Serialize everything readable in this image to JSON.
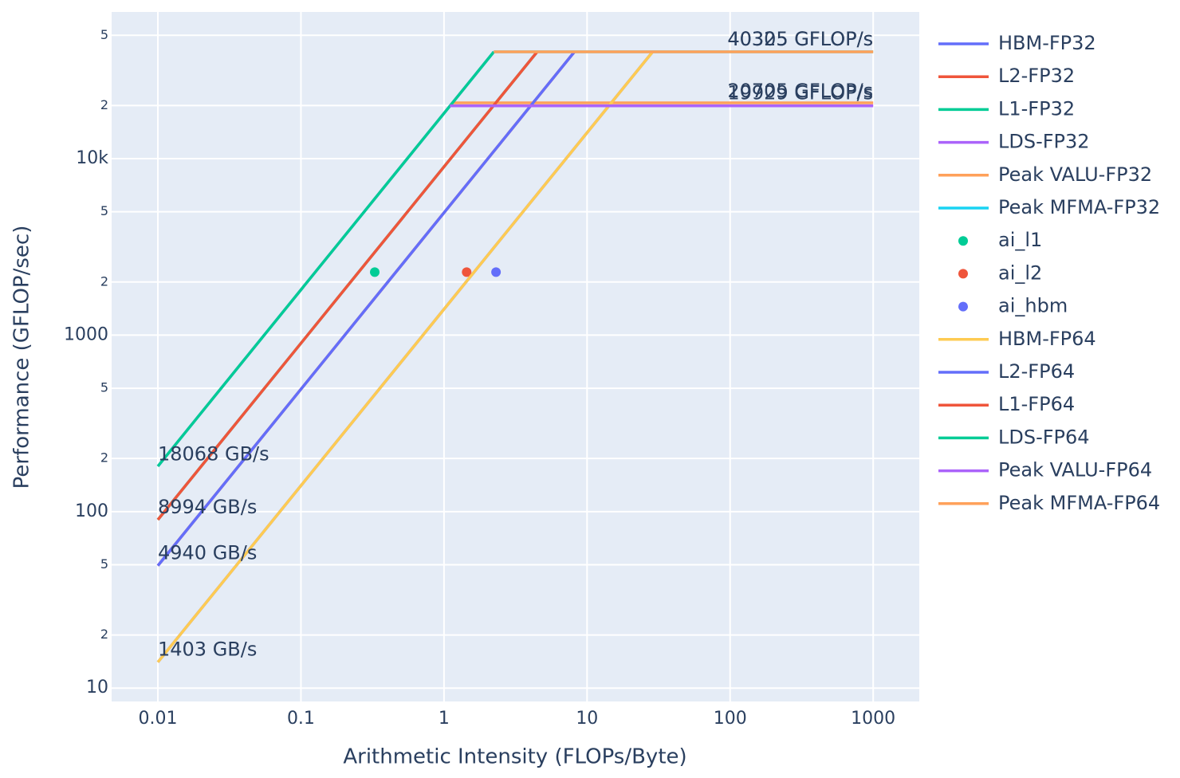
{
  "chart_data": {
    "type": "line",
    "x_label": "Arithmetic Intensity (FLOPs/Byte)",
    "y_label": "Performance (GFLOP/sec)",
    "x_log": true,
    "y_log": true,
    "grid": true,
    "legend": "right",
    "xlim": [
      0.00475,
      2100
    ],
    "ylim": [
      8.4,
      67800
    ],
    "xticks": [
      0.01,
      0.1,
      1,
      10,
      100,
      1000
    ],
    "yticks": [
      10,
      {
        "value": 20,
        "label": "2"
      },
      {
        "value": 50,
        "label": "5"
      },
      100,
      {
        "value": 200,
        "label": "2"
      },
      {
        "value": 500,
        "label": "5"
      },
      1000,
      {
        "value": 2000,
        "label": "2"
      },
      {
        "value": 5000,
        "label": "5"
      },
      {
        "value": 10000,
        "label": "10k"
      },
      {
        "value": 20000,
        "label": "2"
      },
      {
        "value": 50000,
        "label": "5"
      }
    ],
    "series": [
      {
        "name": "HBM-FP32",
        "color": "#636efa",
        "mode": "lines",
        "x": [
          0.01,
          28.73
        ],
        "values": [
          14.03,
          40305
        ]
      },
      {
        "name": "L2-FP32",
        "color": "#EF553B",
        "mode": "lines",
        "x": [
          0.01,
          8.16
        ],
        "values": [
          49.4,
          40305
        ]
      },
      {
        "name": "L1-FP32",
        "color": "#00cc96",
        "mode": "lines",
        "x": [
          0.01,
          4.48
        ],
        "values": [
          89.94,
          40305
        ]
      },
      {
        "name": "LDS-FP32",
        "color": "#ab63fa",
        "mode": "lines",
        "x": [
          0.01,
          2.23
        ],
        "values": [
          180.68,
          40305
        ]
      },
      {
        "name": "Peak VALU-FP32",
        "color": "#FFA15A",
        "mode": "lines",
        "x": [
          1.15,
          1000
        ],
        "values": [
          20705,
          20705
        ]
      },
      {
        "name": "Peak MFMA-FP32",
        "color": "#19d3f3",
        "mode": "lines",
        "x": [
          2.23,
          1000
        ],
        "values": [
          40305,
          40305
        ]
      },
      {
        "name": "ai_l1",
        "color": "#00cc96",
        "mode": "markers",
        "x": [
          0.328
        ],
        "values": [
          2275
        ]
      },
      {
        "name": "ai_l2",
        "color": "#EF553B",
        "mode": "markers",
        "x": [
          1.44
        ],
        "values": [
          2275
        ]
      },
      {
        "name": "ai_hbm",
        "color": "#636efa",
        "mode": "markers",
        "x": [
          2.31
        ],
        "values": [
          2275
        ]
      },
      {
        "name": "HBM-FP64",
        "color": "#FECB52",
        "mode": "lines",
        "x": [
          0.01,
          28.73
        ],
        "values": [
          14.03,
          40305
        ]
      },
      {
        "name": "L2-FP64",
        "color": "#636efa",
        "mode": "lines",
        "x": [
          0.01,
          8.16
        ],
        "values": [
          49.4,
          40305
        ]
      },
      {
        "name": "L1-FP64",
        "color": "#EF553B",
        "mode": "lines",
        "x": [
          0.01,
          4.48
        ],
        "values": [
          89.94,
          40305
        ]
      },
      {
        "name": "LDS-FP64",
        "color": "#00cc96",
        "mode": "lines",
        "x": [
          0.01,
          2.23
        ],
        "values": [
          180.68,
          40305
        ]
      },
      {
        "name": "Peak VALU-FP64",
        "color": "#ab63fa",
        "mode": "lines",
        "x": [
          1.1,
          1000
        ],
        "values": [
          19929,
          19929
        ]
      },
      {
        "name": "Peak MFMA-FP64",
        "color": "#FFA15A",
        "mode": "lines",
        "x": [
          2.23,
          1000
        ],
        "values": [
          40325,
          40325
        ]
      }
    ],
    "annotations": [
      {
        "text": "18068 GB/s",
        "x": 0.01,
        "y": 210,
        "xanchor": "left"
      },
      {
        "text": "8994 GB/s",
        "x": 0.01,
        "y": 105,
        "xanchor": "left"
      },
      {
        "text": "4940 GB/s",
        "x": 0.01,
        "y": 57.8,
        "xanchor": "left"
      },
      {
        "text": "1403 GB/s",
        "x": 0.01,
        "y": 16.4,
        "xanchor": "left"
      },
      {
        "text": "40305 GFLOP/s",
        "x": 1000,
        "y": 47100,
        "xanchor": "right"
      },
      {
        "text": "40325 GFLOP/s",
        "x": 1000,
        "y": 47100,
        "xanchor": "right"
      },
      {
        "text": "20705 GFLOP/s",
        "x": 1000,
        "y": 24000,
        "xanchor": "right"
      },
      {
        "text": "19929 GFLOP/s",
        "x": 1000,
        "y": 23300,
        "xanchor": "right"
      }
    ]
  }
}
